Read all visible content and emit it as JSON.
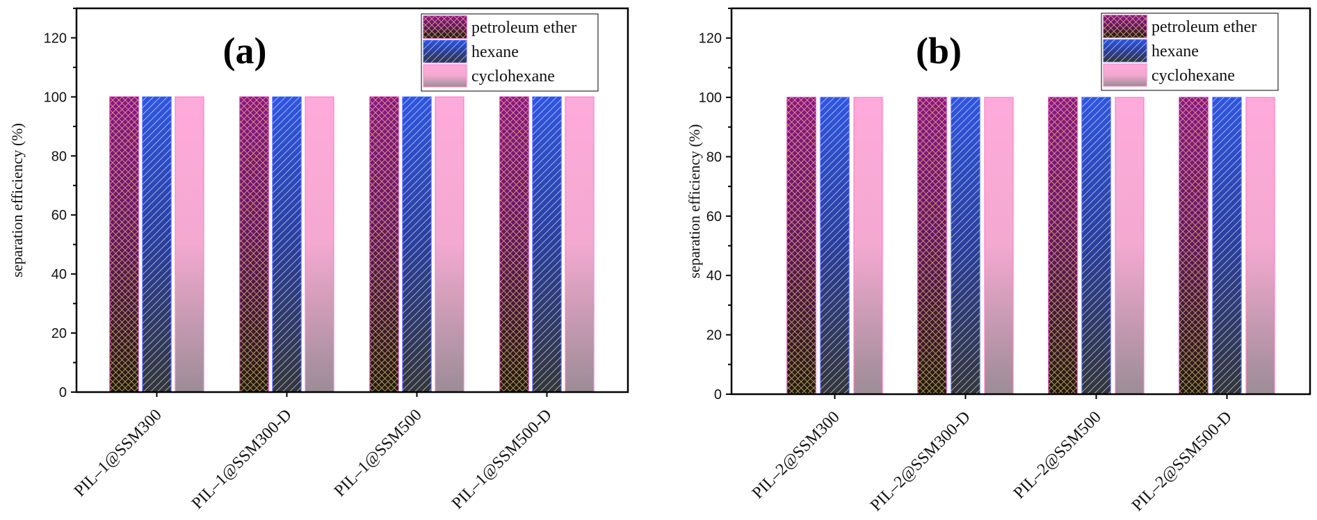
{
  "figure": {
    "title": ""
  },
  "colors": {
    "petroleum ether": "#8a1a86",
    "hexane": "#2a4fd0",
    "cyclohexane": "#ffaad8",
    "axis": "#000000"
  },
  "chart_data": [
    {
      "type": "bar",
      "panel_label": "(a)",
      "title": "",
      "xlabel": "",
      "ylabel": "separation efficiency (%)",
      "ylim": [
        0,
        130
      ],
      "yticks": [
        0,
        20,
        40,
        60,
        80,
        100,
        120
      ],
      "legend_position": "top-right",
      "categories": [
        "PIL–1@SSM300",
        "PIL–1@SSM300-D",
        "PIL–1@SSM500",
        "PIL–1@SSM500-D"
      ],
      "series": [
        {
          "name": "petroleum ether",
          "values": [
            100,
            100,
            100,
            100
          ]
        },
        {
          "name": "hexane",
          "values": [
            100,
            100,
            100,
            100
          ]
        },
        {
          "name": "cyclohexane",
          "values": [
            100,
            100,
            100,
            100
          ]
        }
      ]
    },
    {
      "type": "bar",
      "panel_label": "(b)",
      "title": "",
      "xlabel": "",
      "ylabel": "separation efficiency (%)",
      "ylim": [
        0,
        130
      ],
      "yticks": [
        0,
        20,
        40,
        60,
        80,
        100,
        120
      ],
      "legend_position": "top-right",
      "categories": [
        "PIL–2@SSM300",
        "PIL–2@SSM300-D",
        "PIL–2@SSM500",
        "PIL–2@SSM500-D"
      ],
      "series": [
        {
          "name": "petroleum ether",
          "values": [
            100,
            100,
            100,
            100
          ]
        },
        {
          "name": "hexane",
          "values": [
            100,
            100,
            100,
            100
          ]
        },
        {
          "name": "cyclohexane",
          "values": [
            100,
            100,
            100,
            100
          ]
        }
      ]
    }
  ]
}
